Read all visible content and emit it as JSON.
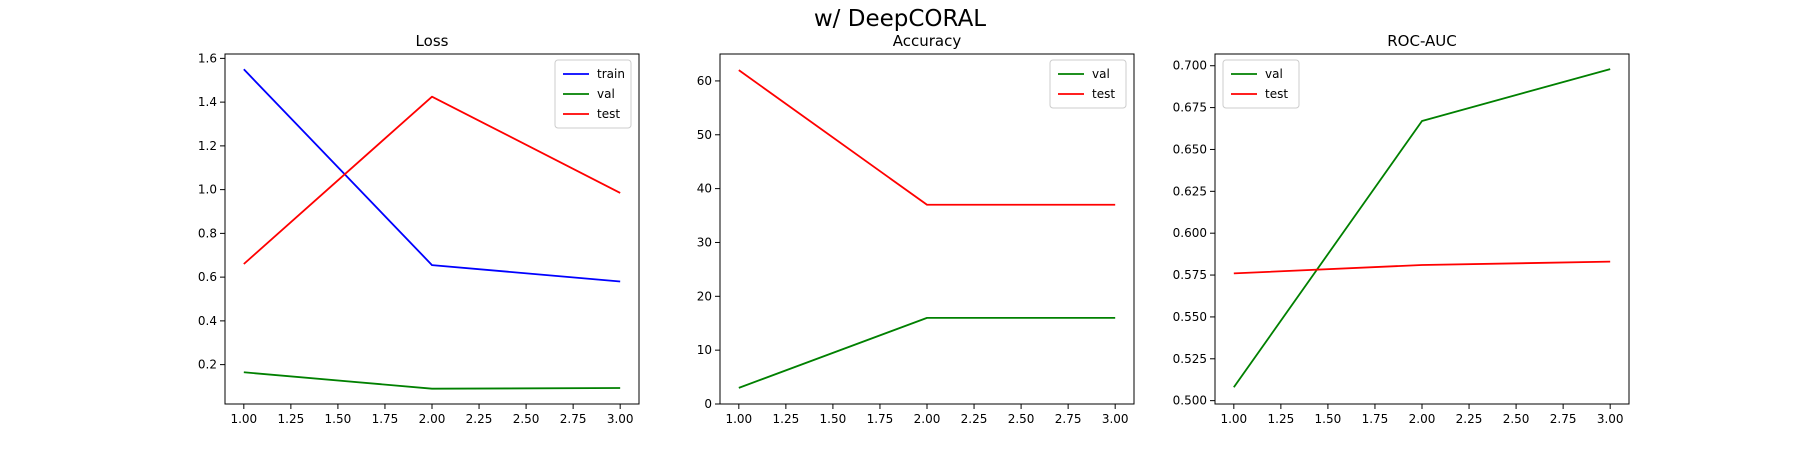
{
  "figure": {
    "suptitle": "w/ DeepCORAL"
  },
  "chart_data": [
    {
      "type": "line",
      "title": "Loss",
      "xlabel": "",
      "ylabel": "",
      "xlim": [
        0.9,
        3.1
      ],
      "ylim": [
        0.02,
        1.62
      ],
      "xticks": [
        1.0,
        1.25,
        1.5,
        1.75,
        2.0,
        2.25,
        2.5,
        2.75,
        3.0
      ],
      "xtick_labels": [
        "1.00",
        "1.25",
        "1.50",
        "1.75",
        "2.00",
        "2.25",
        "2.50",
        "2.75",
        "3.00"
      ],
      "yticks": [
        0.2,
        0.4,
        0.6,
        0.8,
        1.0,
        1.2,
        1.4,
        1.6
      ],
      "ytick_labels": [
        "0.2",
        "0.4",
        "0.6",
        "0.8",
        "1.0",
        "1.2",
        "1.4",
        "1.6"
      ],
      "grid": false,
      "legend_position": "top-right",
      "x": [
        1,
        2,
        3
      ],
      "series": [
        {
          "name": "train",
          "color": "#0000ff",
          "values": [
            1.55,
            0.655,
            0.58
          ]
        },
        {
          "name": "val",
          "color": "#008000",
          "values": [
            0.165,
            0.09,
            0.093
          ]
        },
        {
          "name": "test",
          "color": "#ff0000",
          "values": [
            0.66,
            1.425,
            0.985
          ]
        }
      ]
    },
    {
      "type": "line",
      "title": "Accuracy",
      "xlabel": "",
      "ylabel": "",
      "xlim": [
        0.9,
        3.1
      ],
      "ylim": [
        0,
        65
      ],
      "xticks": [
        1.0,
        1.25,
        1.5,
        1.75,
        2.0,
        2.25,
        2.5,
        2.75,
        3.0
      ],
      "xtick_labels": [
        "1.00",
        "1.25",
        "1.50",
        "1.75",
        "2.00",
        "2.25",
        "2.50",
        "2.75",
        "3.00"
      ],
      "yticks": [
        0,
        10,
        20,
        30,
        40,
        50,
        60
      ],
      "ytick_labels": [
        "0",
        "10",
        "20",
        "30",
        "40",
        "50",
        "60"
      ],
      "grid": false,
      "legend_position": "top-right",
      "x": [
        1,
        2,
        3
      ],
      "series": [
        {
          "name": "val",
          "color": "#008000",
          "values": [
            3.0,
            16.0,
            16.0
          ]
        },
        {
          "name": "test",
          "color": "#ff0000",
          "values": [
            62.0,
            37.0,
            37.0
          ]
        }
      ]
    },
    {
      "type": "line",
      "title": "ROC-AUC",
      "xlabel": "",
      "ylabel": "",
      "xlim": [
        0.9,
        3.1
      ],
      "ylim": [
        0.498,
        0.707
      ],
      "xticks": [
        1.0,
        1.25,
        1.5,
        1.75,
        2.0,
        2.25,
        2.5,
        2.75,
        3.0
      ],
      "xtick_labels": [
        "1.00",
        "1.25",
        "1.50",
        "1.75",
        "2.00",
        "2.25",
        "2.50",
        "2.75",
        "3.00"
      ],
      "yticks": [
        0.5,
        0.525,
        0.55,
        0.575,
        0.6,
        0.625,
        0.65,
        0.675,
        0.7
      ],
      "ytick_labels": [
        "0.500",
        "0.525",
        "0.550",
        "0.575",
        "0.600",
        "0.625",
        "0.650",
        "0.675",
        "0.700"
      ],
      "grid": false,
      "legend_position": "top-left",
      "x": [
        1,
        2,
        3
      ],
      "series": [
        {
          "name": "val",
          "color": "#008000",
          "values": [
            0.508,
            0.667,
            0.698
          ]
        },
        {
          "name": "test",
          "color": "#ff0000",
          "values": [
            0.576,
            0.581,
            0.583
          ]
        }
      ]
    }
  ]
}
